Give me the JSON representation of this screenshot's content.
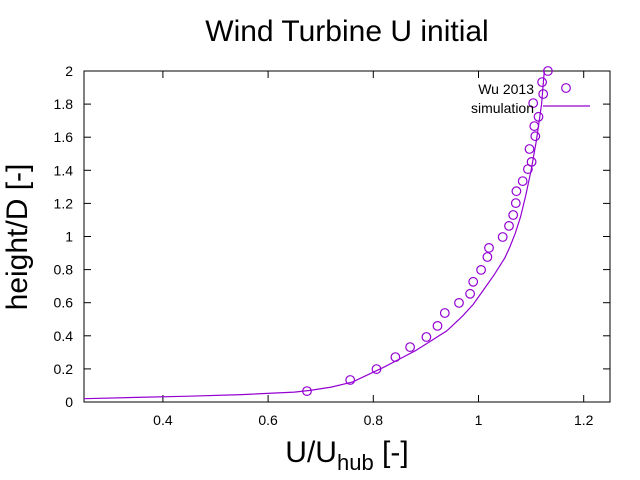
{
  "chart_data": {
    "type": "scatter",
    "title": "Wind Turbine U initial",
    "xlabel": {
      "main": "U/U",
      "sub": "hub",
      "suffix": " [-]"
    },
    "ylabel": "height/D [-]",
    "xlim": [
      0.25,
      1.25
    ],
    "ylim": [
      0,
      2
    ],
    "x_ticks": [
      0.4,
      0.6,
      0.8,
      1.0,
      1.2
    ],
    "x_tick_labels": [
      "0.4",
      "0.6",
      "0.8",
      "1",
      "1.2"
    ],
    "y_ticks": [
      0,
      0.2,
      0.4,
      0.6,
      0.8,
      1.0,
      1.2,
      1.4,
      1.6,
      1.8,
      2.0
    ],
    "y_tick_labels": [
      "0",
      "0.2",
      "0.4",
      "0.6",
      "0.8",
      "1",
      "1.2",
      "1.4",
      "1.6",
      "1.8",
      "2"
    ],
    "grid": false,
    "legend_position": "top-right",
    "series_color": "#9400d3",
    "series": [
      {
        "name": "Wu 2013",
        "style": "points",
        "marker": "open-circle",
        "x": [
          0.674,
          0.756,
          0.806,
          0.842,
          0.87,
          0.901,
          0.922,
          0.936,
          0.963,
          0.984,
          0.99,
          1.005,
          1.017,
          1.02,
          1.046,
          1.058,
          1.066,
          1.071,
          1.072,
          1.084,
          1.094,
          1.097,
          1.101,
          1.108,
          1.106,
          1.104,
          1.114,
          1.123,
          1.121,
          1.132
        ],
        "y": [
          0.066,
          0.133,
          0.199,
          0.271,
          0.332,
          0.393,
          0.46,
          0.538,
          0.599,
          0.654,
          0.726,
          0.798,
          0.876,
          0.931,
          0.997,
          1.064,
          1.13,
          1.202,
          1.274,
          1.335,
          1.407,
          1.529,
          1.451,
          1.606,
          1.667,
          1.806,
          1.723,
          1.861,
          1.933,
          2.0
        ]
      },
      {
        "name": "simulation",
        "style": "line",
        "x": [
          0.25,
          0.35,
          0.45,
          0.55,
          0.65,
          0.68,
          0.72,
          0.76,
          0.79,
          0.82,
          0.85,
          0.88,
          0.91,
          0.94,
          0.97,
          0.99,
          1.01,
          1.03,
          1.05,
          1.06,
          1.07,
          1.08,
          1.09,
          1.1,
          1.11,
          1.12,
          1.125
        ],
        "y": [
          0.02,
          0.028,
          0.035,
          0.045,
          0.06,
          0.07,
          0.09,
          0.12,
          0.165,
          0.21,
          0.26,
          0.31,
          0.37,
          0.43,
          0.52,
          0.59,
          0.68,
          0.77,
          0.87,
          0.94,
          1.02,
          1.12,
          1.25,
          1.4,
          1.58,
          1.8,
          2.0
        ]
      }
    ]
  }
}
